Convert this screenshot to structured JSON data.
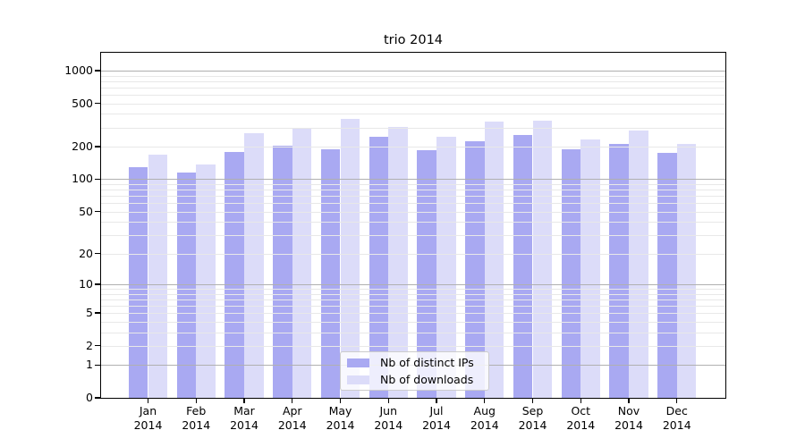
{
  "chart_data": {
    "type": "bar",
    "title": "trio 2014",
    "categories": [
      "Jan",
      "Feb",
      "Mar",
      "Apr",
      "May",
      "Jun",
      "Jul",
      "Aug",
      "Sep",
      "Oct",
      "Nov",
      "Dec"
    ],
    "year_label": "2014",
    "series": [
      {
        "name": "Nb of distinct IPs",
        "color": "#a9a9f2",
        "values": [
          130,
          115,
          180,
          205,
          190,
          245,
          185,
          225,
          258,
          190,
          210,
          175
        ]
      },
      {
        "name": "Nb of downloads",
        "color": "#dcdcf9",
        "values": [
          170,
          137,
          265,
          295,
          360,
          305,
          247,
          340,
          345,
          234,
          280,
          210
        ]
      }
    ],
    "y_axis": {
      "scale": "log1p",
      "tick_labels": [
        "1000",
        "500",
        "200",
        "100",
        "50",
        "20",
        "10",
        "5",
        "2",
        "1",
        "0"
      ],
      "tick_values": [
        1000,
        500,
        200,
        100,
        50,
        20,
        10,
        5,
        2,
        1,
        0
      ],
      "major_grid_values": [
        1,
        10,
        100,
        1000
      ],
      "minor_grid_values": [
        2,
        3,
        4,
        5,
        6,
        7,
        8,
        9,
        20,
        30,
        40,
        50,
        60,
        70,
        80,
        90,
        200,
        300,
        400,
        500,
        600,
        700,
        800,
        900
      ],
      "ylim": [
        0,
        1450
      ]
    },
    "legend_position": "lower center inside",
    "grid": true
  },
  "colors": {
    "grid_major": "#b0b0b0",
    "grid_minor": "#e8e8e8",
    "spine": "#000000",
    "background": "#ffffff",
    "text": "#000000"
  }
}
